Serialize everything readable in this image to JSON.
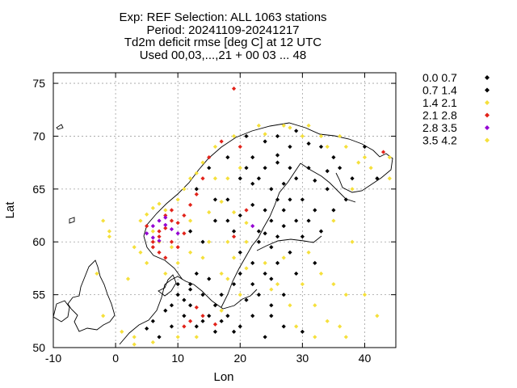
{
  "chart_data": {
    "type": "scatter",
    "title_lines": [
      "Exp: REF   Selection: ALL    1063 stations",
      "Period: 20241109-20241217",
      "Td2m deficit rmse [deg C] at  12 UTC",
      "Used 00,03,...,21 + 00 03 ... 48"
    ],
    "xlabel": "Lon",
    "ylabel": "Lat",
    "xlim": [
      -10,
      45
    ],
    "ylim": [
      50,
      76
    ],
    "xticks": [
      -10,
      0,
      10,
      20,
      30,
      40
    ],
    "yticks": [
      50,
      55,
      60,
      65,
      70,
      75
    ],
    "grid": true,
    "legend_position": "outside-right",
    "legend": [
      {
        "label": "0.0 0.7",
        "color": "#000000"
      },
      {
        "label": "0.7 1.4",
        "color": "#000000"
      },
      {
        "label": "1.4 2.1",
        "color": "#f5e03c"
      },
      {
        "label": "2.1 2.8",
        "color": "#e2231a"
      },
      {
        "label": "2.8 3.5",
        "color": "#9400d3"
      },
      {
        "label": "3.5 4.2",
        "color": "#f5e03c"
      }
    ],
    "series": [
      {
        "name": "0.0 0.7",
        "color": "#000000",
        "points": [
          [
            24,
            67
          ],
          [
            26,
            67.5
          ],
          [
            29,
            66
          ],
          [
            25,
            65
          ],
          [
            28,
            64
          ],
          [
            22,
            63.5
          ],
          [
            27,
            63
          ],
          [
            25,
            62
          ],
          [
            29,
            62
          ],
          [
            23,
            61
          ],
          [
            26,
            60.5
          ],
          [
            14,
            60
          ],
          [
            12,
            61
          ],
          [
            16,
            62
          ],
          [
            18,
            64
          ],
          [
            20,
            66
          ],
          [
            22,
            68
          ],
          [
            24,
            69.5
          ],
          [
            28,
            69
          ],
          [
            19,
            61
          ],
          [
            20,
            59
          ],
          [
            22,
            58
          ],
          [
            24,
            57
          ],
          [
            25,
            56.5
          ],
          [
            23,
            55
          ],
          [
            21,
            54.5
          ],
          [
            10,
            55
          ],
          [
            12,
            54
          ],
          [
            11,
            53
          ],
          [
            13,
            52
          ],
          [
            15,
            53
          ],
          [
            9,
            52
          ],
          [
            8,
            53.5
          ],
          [
            14,
            55
          ],
          [
            16,
            54
          ],
          [
            12,
            56
          ],
          [
            13,
            57
          ],
          [
            10,
            56
          ],
          [
            18,
            53
          ],
          [
            20,
            52
          ],
          [
            25,
            53
          ],
          [
            27,
            52
          ],
          [
            30,
            51.5
          ],
          [
            24,
            51
          ],
          [
            6,
            52.5
          ],
          [
            5,
            51.8
          ],
          [
            26,
            58
          ],
          [
            28,
            59
          ],
          [
            30,
            60.5
          ],
          [
            32,
            58
          ],
          [
            20,
            62.5
          ],
          [
            16,
            64
          ],
          [
            13,
            65
          ],
          [
            15,
            67
          ],
          [
            18,
            68
          ],
          [
            21,
            70
          ],
          [
            26,
            70
          ],
          [
            29,
            70.5
          ],
          [
            33,
            69
          ],
          [
            35,
            68
          ],
          [
            31,
            67
          ],
          [
            25,
            59.5
          ],
          [
            27,
            61.5
          ],
          [
            22,
            65.5
          ]
        ]
      },
      {
        "name": "0.7 1.4",
        "color": "#000000",
        "points": [
          [
            11,
            54.5
          ],
          [
            14,
            52.5
          ],
          [
            16,
            51.5
          ],
          [
            17,
            55
          ],
          [
            19,
            56
          ],
          [
            7,
            51
          ],
          [
            9,
            54
          ],
          [
            12,
            55.5
          ],
          [
            15,
            56.5
          ],
          [
            23,
            60
          ],
          [
            24,
            63
          ],
          [
            26,
            64
          ],
          [
            21,
            67
          ],
          [
            23,
            66
          ],
          [
            28,
            67
          ],
          [
            30,
            64
          ],
          [
            32,
            63
          ],
          [
            34,
            65
          ],
          [
            36,
            67
          ],
          [
            38,
            66
          ],
          [
            40,
            69
          ],
          [
            42,
            66
          ],
          [
            37,
            64
          ],
          [
            35,
            63
          ],
          [
            33,
            61
          ],
          [
            31,
            62
          ],
          [
            29,
            57
          ],
          [
            27,
            55
          ],
          [
            25,
            54
          ],
          [
            22,
            53
          ],
          [
            19,
            51.5
          ],
          [
            17,
            52.5
          ],
          [
            20,
            57
          ],
          [
            22,
            56
          ],
          [
            24,
            60.8
          ],
          [
            27,
            65.5
          ],
          [
            26,
            68.2
          ],
          [
            31,
            69.3
          ],
          [
            32,
            65.8
          ],
          [
            34,
            66.7
          ],
          [
            18,
            62
          ]
        ]
      },
      {
        "name": "1.4 2.1",
        "color": "#f5e03c",
        "points": [
          [
            10,
            58
          ],
          [
            12,
            59
          ],
          [
            14,
            58.5
          ],
          [
            17,
            57
          ],
          [
            19,
            58.5
          ],
          [
            21,
            57.5
          ],
          [
            5,
            58
          ],
          [
            6,
            61
          ],
          [
            8,
            63
          ],
          [
            10,
            64
          ],
          [
            12,
            66
          ],
          [
            14,
            67.5
          ],
          [
            16,
            69
          ],
          [
            19,
            70
          ],
          [
            23,
            71
          ],
          [
            27,
            71
          ],
          [
            30,
            70
          ],
          [
            33,
            70
          ],
          [
            36,
            70
          ],
          [
            40,
            68
          ],
          [
            44,
            66
          ],
          [
            38,
            65
          ],
          [
            35,
            62
          ],
          [
            38,
            60
          ],
          [
            35,
            56
          ],
          [
            32,
            54
          ],
          [
            36,
            52
          ],
          [
            28,
            54
          ],
          [
            30,
            56
          ],
          [
            25,
            55.5
          ],
          [
            3,
            51
          ],
          [
            1,
            51.5
          ],
          [
            -2,
            53
          ],
          [
            -3,
            57
          ],
          [
            -1,
            60.5
          ],
          [
            2,
            56.5
          ],
          [
            8,
            57
          ],
          [
            15,
            60
          ],
          [
            18,
            60
          ],
          [
            21,
            60
          ],
          [
            33,
            57
          ],
          [
            31,
            59
          ],
          [
            27,
            58.5
          ],
          [
            24,
            58
          ],
          [
            20,
            55
          ],
          [
            18,
            56.5
          ],
          [
            17,
            53.5
          ],
          [
            13,
            51
          ],
          [
            10,
            51
          ],
          [
            6,
            50.5
          ],
          [
            3,
            50.3
          ],
          [
            37,
            55
          ],
          [
            40,
            55
          ],
          [
            42,
            53
          ],
          [
            26,
            56
          ],
          [
            29,
            52
          ],
          [
            32,
            51
          ],
          [
            34,
            52.5
          ],
          [
            37,
            51
          ],
          [
            21,
            61.8
          ],
          [
            19,
            62.8
          ],
          [
            17,
            63.8
          ],
          [
            15,
            62.8
          ],
          [
            12,
            62
          ],
          [
            9,
            59.5
          ],
          [
            7,
            60
          ]
        ]
      },
      {
        "name": "2.1 2.8",
        "color": "#e2231a",
        "points": [
          [
            6,
            59.5
          ],
          [
            7,
            60.5
          ],
          [
            8,
            61.3
          ],
          [
            9,
            62
          ],
          [
            10,
            61.8
          ],
          [
            11,
            60.8
          ],
          [
            7,
            59
          ],
          [
            9,
            60
          ],
          [
            10,
            59.5
          ],
          [
            8,
            58.5
          ],
          [
            6,
            60
          ],
          [
            5,
            61.5
          ],
          [
            11,
            62.5
          ],
          [
            12,
            63.5
          ],
          [
            13,
            64.5
          ],
          [
            14,
            66
          ],
          [
            15,
            68
          ],
          [
            17,
            69.5
          ],
          [
            20,
            69
          ],
          [
            8,
            62.5
          ],
          [
            9,
            63
          ],
          [
            21,
            63
          ],
          [
            19,
            60.5
          ],
          [
            43,
            68.5
          ],
          [
            19,
            74.5
          ],
          [
            14,
            53
          ],
          [
            13,
            53.8
          ],
          [
            12,
            52.5
          ],
          [
            11,
            52
          ],
          [
            16,
            52.2
          ],
          [
            7,
            61
          ]
        ]
      },
      {
        "name": "2.8 3.5",
        "color": "#9400d3",
        "points": [
          [
            6,
            61.5
          ],
          [
            7,
            62
          ],
          [
            8,
            61.6
          ],
          [
            6,
            60.4
          ],
          [
            9,
            61.2
          ],
          [
            7,
            60.1
          ],
          [
            10,
            60.8
          ],
          [
            8,
            62.3
          ],
          [
            22,
            61.5
          ],
          [
            5,
            60.8
          ]
        ]
      },
      {
        "name": "3.5 4.2",
        "color": "#f5e03c",
        "points": [
          [
            4,
            62
          ],
          [
            5,
            62.6
          ],
          [
            6,
            63.2
          ],
          [
            7,
            63.6
          ],
          [
            4,
            59
          ],
          [
            3,
            59.5
          ],
          [
            -1,
            61
          ],
          [
            -2,
            62
          ],
          [
            11,
            65
          ],
          [
            13,
            66.5
          ],
          [
            16,
            66
          ],
          [
            18,
            66
          ],
          [
            20,
            67
          ],
          [
            24,
            70.2
          ],
          [
            28,
            70.8
          ],
          [
            31,
            71
          ],
          [
            34,
            69
          ],
          [
            37,
            69
          ],
          [
            39,
            67.5
          ],
          [
            41,
            67
          ],
          [
            44,
            68
          ]
        ]
      }
    ]
  }
}
